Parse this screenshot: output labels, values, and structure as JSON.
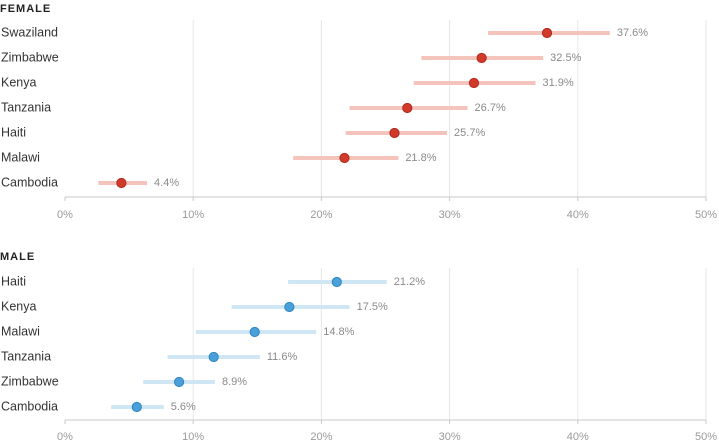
{
  "chart_data": [
    {
      "type": "dot",
      "title": "FEMALE",
      "categories": [
        "Swaziland",
        "Zimbabwe",
        "Kenya",
        "Tanzania",
        "Haiti",
        "Malawi",
        "Cambodia"
      ],
      "values": [
        37.6,
        32.5,
        31.9,
        26.7,
        25.7,
        21.8,
        4.4
      ],
      "value_labels": [
        "37.6%",
        "32.5%",
        "31.9%",
        "26.7%",
        "25.7%",
        "21.8%",
        "4.4%"
      ],
      "ci_low": [
        33.0,
        27.8,
        27.2,
        22.2,
        21.9,
        17.8,
        2.6
      ],
      "ci_high": [
        42.5,
        37.3,
        36.7,
        31.4,
        29.8,
        26.0,
        6.4
      ],
      "xlim": [
        0,
        50
      ],
      "x_ticks": [
        0,
        10,
        20,
        30,
        40,
        50
      ],
      "x_tick_labels": [
        "0%",
        "10%",
        "20%",
        "30%",
        "40%",
        "50%"
      ],
      "grid": true,
      "colors": {
        "dot": "#d03a2a",
        "dot_stroke": "#b12a1d",
        "range": "#f4c3bc"
      }
    },
    {
      "type": "dot",
      "title": "MALE",
      "categories": [
        "Haiti",
        "Kenya",
        "Malawi",
        "Tanzania",
        "Zimbabwe",
        "Cambodia"
      ],
      "values": [
        21.2,
        17.5,
        14.8,
        11.6,
        8.9,
        5.6
      ],
      "value_labels": [
        "21.2%",
        "17.5%",
        "14.8%",
        "11.6%",
        "8.9%",
        "5.6%"
      ],
      "ci_low": [
        17.4,
        13.0,
        10.2,
        8.0,
        6.1,
        3.6
      ],
      "ci_high": [
        25.1,
        22.2,
        19.6,
        15.2,
        11.7,
        7.7
      ],
      "xlim": [
        0,
        50
      ],
      "x_ticks": [
        0,
        10,
        20,
        30,
        40,
        50
      ],
      "x_tick_labels": [
        "0%",
        "10%",
        "20%",
        "30%",
        "40%",
        "50%"
      ],
      "grid": true,
      "colors": {
        "dot": "#4aa0d9",
        "dot_stroke": "#2f86c0",
        "range": "#cfe6f4"
      }
    }
  ]
}
